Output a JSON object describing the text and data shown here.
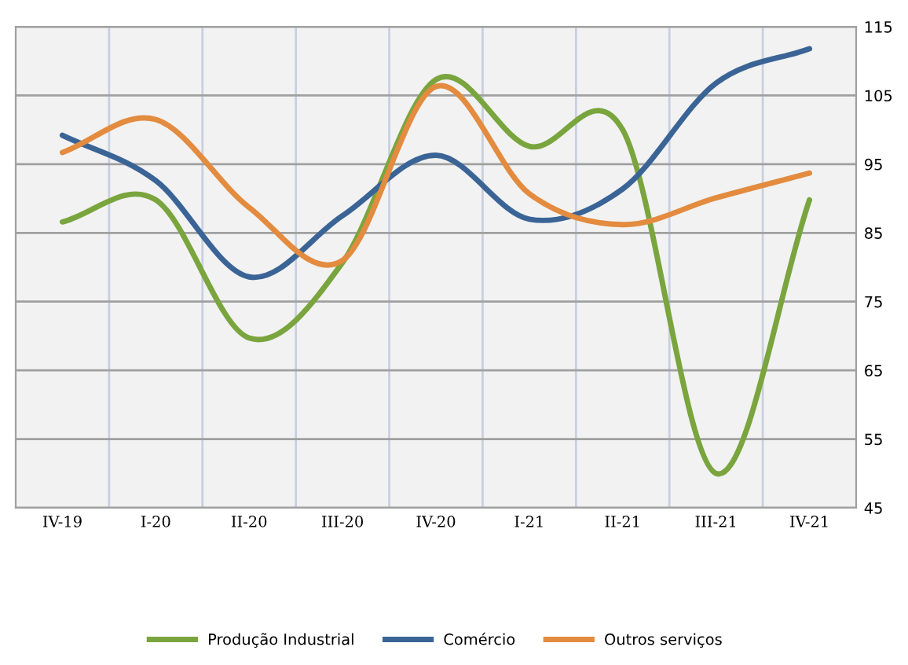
{
  "chart_data": {
    "type": "line",
    "categories": [
      "IV-19",
      "I-20",
      "II-20",
      "III-20",
      "IV-20",
      "I-21",
      "II-21",
      "III-21",
      "IV-21"
    ],
    "series": [
      {
        "name": "Produção Industrial",
        "color": "#7aa53e",
        "values": [
          86.6,
          89.8,
          69.7,
          80.7,
          107.3,
          97.6,
          100,
          50,
          89.8
        ]
      },
      {
        "name": "Comércio",
        "color": "#3b6496",
        "values": [
          99.2,
          92.6,
          78.6,
          87.5,
          96.3,
          87,
          91.4,
          106.8,
          111.8
        ]
      },
      {
        "name": "Outros serviços",
        "color": "#e38b3f",
        "values": [
          96.7,
          101.5,
          88.7,
          81,
          106.3,
          90.7,
          86.2,
          90.1,
          93.7
        ]
      }
    ],
    "ylim": [
      45,
      115
    ],
    "yticks": [
      45,
      55,
      65,
      75,
      85,
      95,
      105,
      115
    ],
    "grid": true,
    "legend": "bottom",
    "line_style": "solid",
    "marker": "none"
  }
}
